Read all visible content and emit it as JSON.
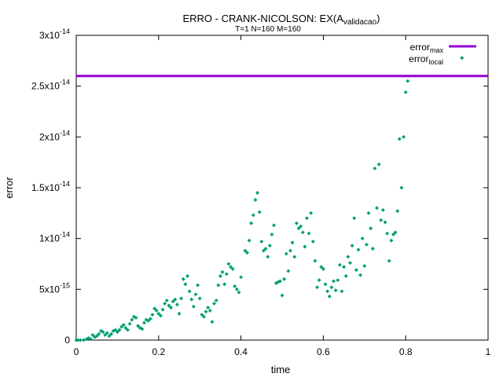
{
  "chart_data": {
    "type": "scatter",
    "title_main": "ERRO - CRANK-NICOLSON: EX(A",
    "title_sub": "validacao",
    "title_close": ")",
    "subtitle": "T=1 N=160 M=160",
    "xlabel": "time",
    "ylabel": "error",
    "xlim": [
      0,
      1
    ],
    "ylim": [
      0,
      3e-14
    ],
    "x_ticks": [
      "0",
      "0.2",
      "0.4",
      "0.6",
      "0.8",
      "1"
    ],
    "y_ticks": [
      {
        "base": "0",
        "exp": ""
      },
      {
        "base": "5x10",
        "exp": "-15"
      },
      {
        "base": "1x10",
        "exp": "-14"
      },
      {
        "base": "1.5x10",
        "exp": "-14"
      },
      {
        "base": "2x10",
        "exp": "-14"
      },
      {
        "base": "2.5x10",
        "exp": "-14"
      },
      {
        "base": "3x10",
        "exp": "-14"
      }
    ],
    "legend_position": "top-right",
    "grid": false,
    "series": [
      {
        "name": "error",
        "name_sub": "max",
        "style": "line",
        "color": "#9400d3",
        "x": [
          0,
          1
        ],
        "y": [
          2.6e-14,
          2.6e-14
        ]
      },
      {
        "name": "error",
        "name_sub": "local",
        "style": "points",
        "color": "#009e73",
        "points": [
          [
            0.0,
            0.0
          ],
          [
            0.004,
            0.0
          ],
          [
            0.01,
            0.0
          ],
          [
            0.018,
            0.0
          ],
          [
            0.025,
            1e-16
          ],
          [
            0.03,
            2e-16
          ],
          [
            0.035,
            1e-16
          ],
          [
            0.04,
            5e-16
          ],
          [
            0.045,
            3e-16
          ],
          [
            0.05,
            4e-16
          ],
          [
            0.055,
            6e-16
          ],
          [
            0.06,
            9e-16
          ],
          [
            0.065,
            8e-16
          ],
          [
            0.07,
            5e-16
          ],
          [
            0.075,
            7e-16
          ],
          [
            0.08,
            4e-16
          ],
          [
            0.085,
            6e-16
          ],
          [
            0.09,
            9e-16
          ],
          [
            0.095,
            1e-15
          ],
          [
            0.1,
            8e-16
          ],
          [
            0.105,
            1e-15
          ],
          [
            0.11,
            1.3e-15
          ],
          [
            0.115,
            1.5e-15
          ],
          [
            0.12,
            1.2e-15
          ],
          [
            0.125,
            1e-15
          ],
          [
            0.13,
            1.6e-15
          ],
          [
            0.135,
            2e-15
          ],
          [
            0.14,
            2.3e-15
          ],
          [
            0.145,
            2.2e-15
          ],
          [
            0.15,
            1.4e-15
          ],
          [
            0.155,
            1.2e-15
          ],
          [
            0.16,
            1.1e-15
          ],
          [
            0.165,
            1.7e-15
          ],
          [
            0.17,
            2e-15
          ],
          [
            0.175,
            1.9e-15
          ],
          [
            0.18,
            2.1e-15
          ],
          [
            0.185,
            2.5e-15
          ],
          [
            0.19,
            3.1e-15
          ],
          [
            0.195,
            2.9e-15
          ],
          [
            0.2,
            2.6e-15
          ],
          [
            0.205,
            2.4e-15
          ],
          [
            0.21,
            3e-15
          ],
          [
            0.215,
            3.6e-15
          ],
          [
            0.22,
            3.9e-15
          ],
          [
            0.225,
            3.4e-15
          ],
          [
            0.23,
            3.2e-15
          ],
          [
            0.235,
            3.8e-15
          ],
          [
            0.24,
            4e-15
          ],
          [
            0.245,
            3.5e-15
          ],
          [
            0.25,
            2.6e-15
          ],
          [
            0.255,
            4.1e-15
          ],
          [
            0.26,
            6e-15
          ],
          [
            0.265,
            5.5e-15
          ],
          [
            0.27,
            6.3e-15
          ],
          [
            0.275,
            4.8e-15
          ],
          [
            0.28,
            4e-15
          ],
          [
            0.285,
            3.3e-15
          ],
          [
            0.29,
            4.5e-15
          ],
          [
            0.295,
            5.4e-15
          ],
          [
            0.3,
            4.1e-15
          ],
          [
            0.305,
            2.5e-15
          ],
          [
            0.31,
            2.3e-15
          ],
          [
            0.315,
            2.8e-15
          ],
          [
            0.32,
            3.2e-15
          ],
          [
            0.325,
            2.9e-15
          ],
          [
            0.33,
            1.8e-15
          ],
          [
            0.335,
            3.6e-15
          ],
          [
            0.34,
            3.9e-15
          ],
          [
            0.345,
            5.4e-15
          ],
          [
            0.35,
            6.3e-15
          ],
          [
            0.355,
            6.7e-15
          ],
          [
            0.36,
            5.5e-15
          ],
          [
            0.365,
            6.5e-15
          ],
          [
            0.37,
            7.5e-15
          ],
          [
            0.375,
            7.2e-15
          ],
          [
            0.38,
            7e-15
          ],
          [
            0.385,
            5.3e-15
          ],
          [
            0.39,
            5e-15
          ],
          [
            0.395,
            4.7e-15
          ],
          [
            0.4,
            6.2e-15
          ],
          [
            0.41,
            8.8e-15
          ],
          [
            0.415,
            8.6e-15
          ],
          [
            0.42,
            9.8e-15
          ],
          [
            0.425,
            1.15e-14
          ],
          [
            0.43,
            1.23e-14
          ],
          [
            0.435,
            1.38e-14
          ],
          [
            0.44,
            1.45e-14
          ],
          [
            0.445,
            1.26e-14
          ],
          [
            0.45,
            9.7e-15
          ],
          [
            0.455,
            8.8e-15
          ],
          [
            0.46,
            9e-15
          ],
          [
            0.465,
            8.2e-15
          ],
          [
            0.47,
            9.3e-15
          ],
          [
            0.475,
            1.04e-14
          ],
          [
            0.48,
            1.13e-14
          ],
          [
            0.485,
            5.6e-15
          ],
          [
            0.49,
            5.7e-15
          ],
          [
            0.495,
            5.8e-15
          ],
          [
            0.5,
            4.4e-15
          ],
          [
            0.505,
            6e-15
          ],
          [
            0.51,
            8.5e-15
          ],
          [
            0.515,
            6.8e-15
          ],
          [
            0.52,
            8.8e-15
          ],
          [
            0.525,
            9.6e-15
          ],
          [
            0.53,
            8.2e-15
          ],
          [
            0.535,
            1.15e-14
          ],
          [
            0.54,
            1.1e-14
          ],
          [
            0.545,
            1.12e-14
          ],
          [
            0.55,
            1.06e-14
          ],
          [
            0.555,
            9.2e-15
          ],
          [
            0.56,
            1.2e-14
          ],
          [
            0.565,
            1.05e-14
          ],
          [
            0.57,
            1.25e-14
          ],
          [
            0.575,
            9.7e-15
          ],
          [
            0.58,
            7.8e-15
          ],
          [
            0.585,
            5.2e-15
          ],
          [
            0.59,
            5.9e-15
          ],
          [
            0.595,
            7.2e-15
          ],
          [
            0.6,
            7e-15
          ],
          [
            0.605,
            5.5e-15
          ],
          [
            0.61,
            4.8e-15
          ],
          [
            0.615,
            4.3e-15
          ],
          [
            0.62,
            5.2e-15
          ],
          [
            0.625,
            5.8e-15
          ],
          [
            0.63,
            4.9e-15
          ],
          [
            0.635,
            5.9e-15
          ],
          [
            0.64,
            7.4e-15
          ],
          [
            0.645,
            4.8e-15
          ],
          [
            0.65,
            7.2e-15
          ],
          [
            0.655,
            6.3e-15
          ],
          [
            0.66,
            8.2e-15
          ],
          [
            0.665,
            7.6e-15
          ],
          [
            0.67,
            9.3e-15
          ],
          [
            0.675,
            1.2e-14
          ],
          [
            0.68,
            6.9e-15
          ],
          [
            0.685,
            8.9e-15
          ],
          [
            0.69,
            6.4e-15
          ],
          [
            0.695,
            1e-14
          ],
          [
            0.7,
            7.3e-15
          ],
          [
            0.705,
            9.4e-15
          ],
          [
            0.71,
            1.25e-14
          ],
          [
            0.715,
            1.1e-14
          ],
          [
            0.72,
            9e-15
          ],
          [
            0.725,
            1.69e-14
          ],
          [
            0.73,
            1.3e-14
          ],
          [
            0.735,
            1.73e-14
          ],
          [
            0.74,
            1.18e-14
          ],
          [
            0.745,
            1.28e-14
          ],
          [
            0.75,
            1.16e-14
          ],
          [
            0.755,
            1.05e-14
          ],
          [
            0.76,
            7.8e-15
          ],
          [
            0.765,
            9.8e-15
          ],
          [
            0.77,
            1.04e-14
          ],
          [
            0.775,
            1.06e-14
          ],
          [
            0.78,
            1.27e-14
          ],
          [
            0.785,
            1.98e-14
          ],
          [
            0.79,
            1.5e-14
          ],
          [
            0.795,
            2e-14
          ],
          [
            0.8,
            2.44e-14
          ],
          [
            0.805,
            2.55e-14
          ]
        ]
      }
    ]
  }
}
